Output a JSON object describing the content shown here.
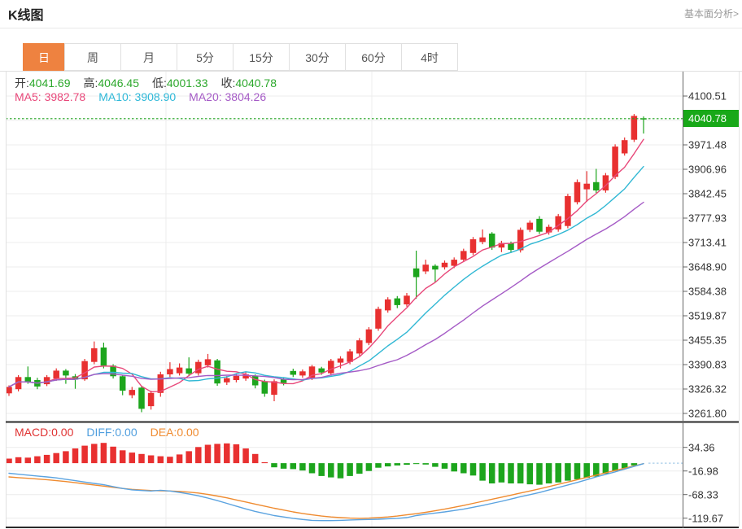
{
  "header": {
    "title": "K线图",
    "link": "基本面分析>"
  },
  "tabs": {
    "items": [
      "日",
      "周",
      "月",
      "5分",
      "15分",
      "30分",
      "60分",
      "4时"
    ],
    "active": "日",
    "active_index": 0,
    "active_color": "#ee8240"
  },
  "info": {
    "label_color": "#3a3a3a",
    "value_color": "#2ca82c",
    "ohlc": [
      {
        "name": "open",
        "label": "开:",
        "value": "4041.69"
      },
      {
        "name": "high",
        "label": "高:",
        "value": "4046.45"
      },
      {
        "name": "low",
        "label": "低:",
        "value": "4001.33"
      },
      {
        "name": "close",
        "label": "收:",
        "value": "4040.78"
      }
    ],
    "ma": [
      {
        "name": "ma5",
        "label": "MA5: ",
        "value": "3982.78",
        "color": "#e8487a"
      },
      {
        "name": "ma10",
        "label": "MA10: ",
        "value": "3908.90",
        "color": "#2fb8d8"
      },
      {
        "name": "ma20",
        "label": "MA20: ",
        "value": "3804.26",
        "color": "#a55bc6"
      }
    ]
  },
  "indicator_labels": [
    {
      "name": "macd",
      "label": "MACD:",
      "value": "0.00",
      "color": "#e03333"
    },
    {
      "name": "diff",
      "label": "DIFF:",
      "value": "0.00",
      "color": "#4f9ede"
    },
    {
      "name": "dea",
      "label": "DEA:",
      "value": "0.00",
      "color": "#ef8b30"
    }
  ],
  "price_axis": {
    "ticks": [
      "4100.51",
      "3971.48",
      "3906.96",
      "3842.45",
      "3777.93",
      "3713.41",
      "3648.90",
      "3584.38",
      "3519.87",
      "3455.35",
      "3390.83",
      "3326.32",
      "3261.80"
    ],
    "tick_values": [
      4100.51,
      3971.48,
      3906.96,
      3842.45,
      3777.93,
      3713.41,
      3648.9,
      3584.38,
      3519.87,
      3455.35,
      3390.83,
      3326.32,
      3261.8
    ],
    "current": "4040.78",
    "current_value": 4040.78,
    "current_color": "#18a818"
  },
  "macd_axis": {
    "ticks": [
      "34.36",
      "-16.98",
      "-68.33",
      "-119.67"
    ],
    "tick_values": [
      34.36,
      -16.98,
      -68.33,
      -119.67
    ]
  },
  "chart_data": {
    "type": "candlestick+macd",
    "title": "K线图",
    "period_selected": "日",
    "ohlc_readout": {
      "open": 4041.69,
      "high": 4046.45,
      "low": 4001.33,
      "close": 4040.78
    },
    "ma_readout": {
      "MA5": 3982.78,
      "MA10": 3908.9,
      "MA20": 3804.26
    },
    "macd_readout": {
      "MACD": 0.0,
      "DIFF": 0.0,
      "DEA": 0.0
    },
    "current_price": 4040.78,
    "price_ylim": [
      3240,
      4165
    ],
    "macd_ylim": [
      -139.7,
      86.9
    ],
    "grid": true,
    "legend_position": "top-left",
    "candles_ohlc": [
      [
        3315,
        3336,
        3308,
        3332
      ],
      [
        3326,
        3363,
        3320,
        3358
      ],
      [
        3358,
        3386,
        3340,
        3345
      ],
      [
        3350,
        3356,
        3326,
        3333
      ],
      [
        3339,
        3363,
        3334,
        3358
      ],
      [
        3354,
        3381,
        3348,
        3375
      ],
      [
        3375,
        3379,
        3340,
        3362
      ],
      [
        3360,
        3366,
        3327,
        3351
      ],
      [
        3352,
        3406,
        3348,
        3400
      ],
      [
        3398,
        3452,
        3392,
        3434
      ],
      [
        3436,
        3449,
        3381,
        3388
      ],
      [
        3388,
        3392,
        3354,
        3360
      ],
      [
        3360,
        3364,
        3310,
        3322
      ],
      [
        3310,
        3332,
        3302,
        3324
      ],
      [
        3330,
        3334,
        3265,
        3274
      ],
      [
        3281,
        3322,
        3272,
        3316
      ],
      [
        3316,
        3372,
        3306,
        3365
      ],
      [
        3365,
        3397,
        3358,
        3379
      ],
      [
        3368,
        3394,
        3362,
        3383
      ],
      [
        3381,
        3410,
        3360,
        3367
      ],
      [
        3368,
        3404,
        3362,
        3398
      ],
      [
        3389,
        3419,
        3383,
        3405
      ],
      [
        3402,
        3406,
        3335,
        3341
      ],
      [
        3344,
        3361,
        3337,
        3355
      ],
      [
        3350,
        3368,
        3344,
        3361
      ],
      [
        3354,
        3371,
        3348,
        3365
      ],
      [
        3361,
        3365,
        3328,
        3336
      ],
      [
        3347,
        3351,
        3306,
        3314
      ],
      [
        3311,
        3352,
        3294,
        3347
      ],
      [
        3352,
        3356,
        3336,
        3342
      ],
      [
        3374,
        3380,
        3358,
        3364
      ],
      [
        3362,
        3378,
        3356,
        3373
      ],
      [
        3356,
        3390,
        3350,
        3386
      ],
      [
        3381,
        3385,
        3364,
        3370
      ],
      [
        3368,
        3406,
        3362,
        3401
      ],
      [
        3396,
        3413,
        3381,
        3407
      ],
      [
        3398,
        3432,
        3392,
        3426
      ],
      [
        3420,
        3461,
        3414,
        3455
      ],
      [
        3448,
        3490,
        3442,
        3484
      ],
      [
        3486,
        3544,
        3480,
        3538
      ],
      [
        3534,
        3569,
        3528,
        3563
      ],
      [
        3566,
        3572,
        3540,
        3548
      ],
      [
        3550,
        3580,
        3544,
        3573
      ],
      [
        3645,
        3692,
        3565,
        3622
      ],
      [
        3637,
        3668,
        3630,
        3655
      ],
      [
        3652,
        3656,
        3609,
        3642
      ],
      [
        3648,
        3666,
        3642,
        3660
      ],
      [
        3652,
        3674,
        3646,
        3668
      ],
      [
        3668,
        3697,
        3662,
        3691
      ],
      [
        3686,
        3728,
        3680,
        3722
      ],
      [
        3715,
        3748,
        3709,
        3727
      ],
      [
        3737,
        3741,
        3694,
        3700
      ],
      [
        3700,
        3718,
        3688,
        3712
      ],
      [
        3712,
        3716,
        3686,
        3694
      ],
      [
        3693,
        3753,
        3687,
        3747
      ],
      [
        3747,
        3772,
        3741,
        3766
      ],
      [
        3776,
        3783,
        3736,
        3742
      ],
      [
        3740,
        3761,
        3734,
        3755
      ],
      [
        3748,
        3789,
        3742,
        3783
      ],
      [
        3757,
        3842,
        3751,
        3836
      ],
      [
        3820,
        3880,
        3814,
        3873
      ],
      [
        3854,
        3902,
        3821,
        3869
      ],
      [
        3873,
        3908,
        3844,
        3851
      ],
      [
        3851,
        3897,
        3845,
        3891
      ],
      [
        3887,
        3973,
        3881,
        3967
      ],
      [
        3949,
        3991,
        3943,
        3984
      ],
      [
        3985,
        4053,
        3979,
        4048
      ],
      [
        4041.69,
        4046.45,
        4001.33,
        4040.78
      ]
    ],
    "ma_periods": [
      5,
      10,
      20
    ],
    "macd": {
      "hist": [
        10,
        13,
        12,
        15,
        18,
        22,
        26,
        32,
        38,
        42,
        44,
        36,
        28,
        23,
        20,
        17,
        15,
        14,
        19,
        26,
        35,
        40,
        42,
        43,
        41,
        32,
        20,
        2,
        -9,
        -12,
        -13,
        -16,
        -22,
        -28,
        -31,
        -33,
        -28,
        -23,
        -17,
        -10,
        -7,
        -5,
        -3.5,
        -2,
        -3,
        -8,
        -12,
        -18,
        -22,
        -27,
        -38,
        -44,
        -42,
        -44,
        -44,
        -46,
        -47,
        -44,
        -42,
        -38,
        -35,
        -32,
        -29,
        -23,
        -17,
        -11,
        -5,
        0
      ],
      "diff": [
        -22,
        -24,
        -26,
        -28,
        -30,
        -32,
        -35,
        -38,
        -41,
        -44,
        -47,
        -51,
        -55,
        -58,
        -59.5,
        -60.5,
        -59,
        -60.5,
        -63.5,
        -67,
        -71,
        -76,
        -81.5,
        -87.5,
        -93.5,
        -99.5,
        -105,
        -109.5,
        -114,
        -117,
        -120,
        -122.5,
        -124.5,
        -125,
        -125,
        -124.5,
        -123.5,
        -123,
        -122.5,
        -122,
        -121,
        -120,
        -118.5,
        -114,
        -111,
        -108.5,
        -106,
        -103,
        -100,
        -96,
        -92,
        -87.5,
        -83,
        -78,
        -73,
        -68.5,
        -64,
        -58.5,
        -53,
        -47.5,
        -42,
        -36,
        -30,
        -24.5,
        -19,
        -13,
        -7,
        -1
      ],
      "dea": [
        -30,
        -31.5,
        -33,
        -34.5,
        -36,
        -38,
        -40,
        -42.5,
        -45,
        -47.5,
        -50,
        -52.5,
        -55,
        -57,
        -58.5,
        -59.5,
        -60,
        -60.5,
        -61.5,
        -63,
        -65,
        -68,
        -71.5,
        -75.5,
        -80,
        -84.5,
        -89,
        -93.5,
        -98,
        -102,
        -106,
        -109.5,
        -112.5,
        -115,
        -117,
        -118.5,
        -119.5,
        -120,
        -119.5,
        -118.5,
        -117,
        -115,
        -112.5,
        -110,
        -107,
        -103.5,
        -100,
        -96,
        -92,
        -87.5,
        -83,
        -78.5,
        -74,
        -69.5,
        -65,
        -60.5,
        -56,
        -51,
        -46,
        -41,
        -36,
        -31,
        -26,
        -21,
        -16,
        -11,
        -6,
        -1
      ]
    },
    "colors": {
      "up": "#e83030",
      "down": "#1da51d",
      "ma5": "#e8487a",
      "ma10": "#31b8d4",
      "ma20": "#a55bc6",
      "diff": "#5ba3e0",
      "dea": "#ef8b30",
      "price_line": "#21a421",
      "macd_zero_dotted": "#a8cdea",
      "grid": "#ececec",
      "axis": "#666666",
      "border": "#2a2a2a"
    }
  }
}
